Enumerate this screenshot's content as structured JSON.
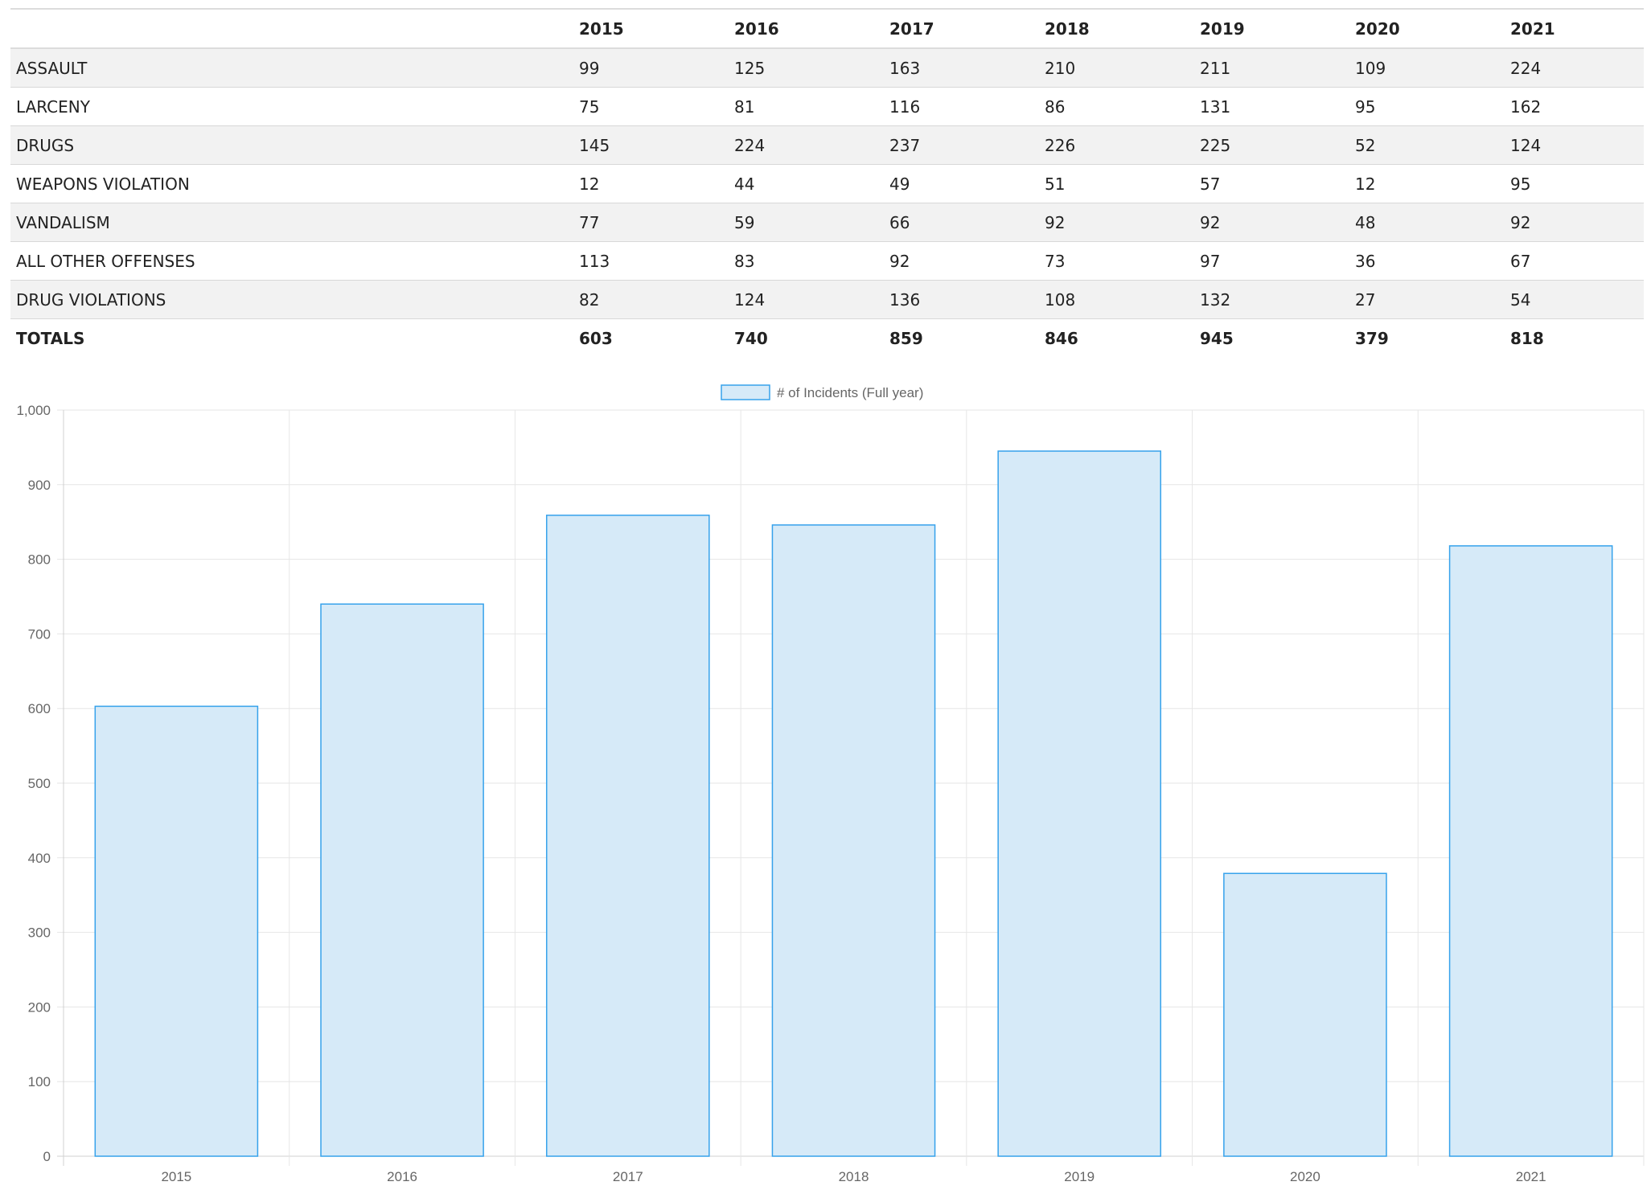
{
  "table": {
    "columns": [
      "",
      "2015",
      "2016",
      "2017",
      "2018",
      "2019",
      "2020",
      "2021"
    ],
    "rows": [
      {
        "label": "ASSAULT",
        "values": [
          "99",
          "125",
          "163",
          "210",
          "211",
          "109",
          "224"
        ]
      },
      {
        "label": "LARCENY",
        "values": [
          "75",
          "81",
          "116",
          "86",
          "131",
          "95",
          "162"
        ]
      },
      {
        "label": "DRUGS",
        "values": [
          "145",
          "224",
          "237",
          "226",
          "225",
          "52",
          "124"
        ]
      },
      {
        "label": "WEAPONS VIOLATION",
        "values": [
          "12",
          "44",
          "49",
          "51",
          "57",
          "12",
          "95"
        ]
      },
      {
        "label": "VANDALISM",
        "values": [
          "77",
          "59",
          "66",
          "92",
          "92",
          "48",
          "92"
        ]
      },
      {
        "label": "ALL OTHER OFFENSES",
        "values": [
          "113",
          "83",
          "92",
          "73",
          "97",
          "36",
          "67"
        ]
      },
      {
        "label": "DRUG VIOLATIONS",
        "values": [
          "82",
          "124",
          "136",
          "108",
          "132",
          "27",
          "54"
        ]
      }
    ],
    "totals": {
      "label": "TOTALS",
      "values": [
        "603",
        "740",
        "859",
        "846",
        "945",
        "379",
        "818"
      ]
    }
  },
  "chart_data": {
    "type": "bar",
    "categories": [
      "2015",
      "2016",
      "2017",
      "2018",
      "2019",
      "2020",
      "2021"
    ],
    "series": [
      {
        "name": "# of Incidents (Full year)",
        "values": [
          603,
          740,
          859,
          846,
          945,
          379,
          818
        ]
      }
    ],
    "ylim": [
      0,
      1000
    ],
    "yticks": [
      0,
      100,
      200,
      300,
      400,
      500,
      600,
      700,
      800,
      900,
      1000
    ],
    "ytick_labels": [
      "0",
      "100",
      "200",
      "300",
      "400",
      "500",
      "600",
      "700",
      "800",
      "900",
      "1,000"
    ],
    "grid": true,
    "legend_position": "top-center",
    "colors": {
      "bar_fill": "#d6eaf8",
      "bar_border": "#36a2eb",
      "grid": "#e6e6e6",
      "text": "#666666"
    }
  }
}
